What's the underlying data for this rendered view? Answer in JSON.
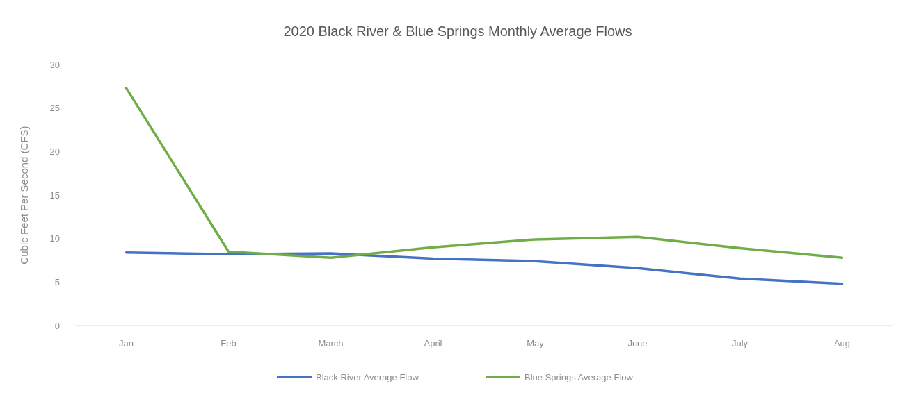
{
  "chart_data": {
    "type": "line",
    "title": "2020 Black River & Blue Springs Monthly Average Flows",
    "ylabel": "Cubic Feet Per Second (CFS)",
    "categories": [
      "Jan",
      "Feb",
      "March",
      "April",
      "May",
      "June",
      "July",
      "Aug"
    ],
    "series": [
      {
        "name": "Black River Average Flow",
        "color": "#4472c4",
        "values": [
          8.4,
          8.2,
          8.3,
          7.7,
          7.4,
          6.6,
          5.4,
          4.8
        ]
      },
      {
        "name": "Blue Springs Average Flow",
        "color": "#70ad47",
        "values": [
          27.3,
          8.5,
          7.8,
          9.0,
          9.9,
          10.2,
          8.9,
          7.8
        ]
      }
    ],
    "ylim": [
      0,
      30
    ],
    "yticks": [
      0,
      5,
      10,
      15,
      20,
      25,
      30
    ],
    "grid": false,
    "legend": "bottom",
    "marker": "none",
    "line_style": "solid"
  }
}
